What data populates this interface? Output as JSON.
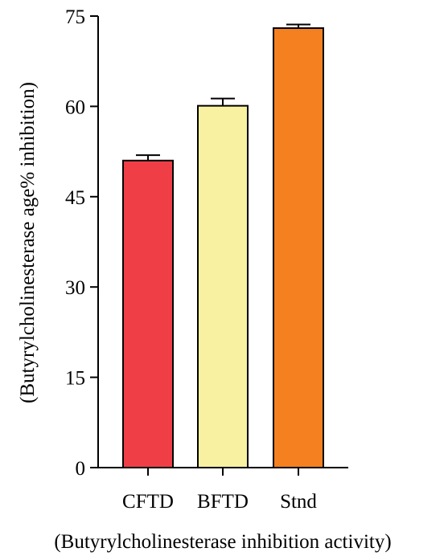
{
  "chart_data": {
    "type": "bar",
    "title": "",
    "xlabel": "(Butyrylcholinesterase inhibition activity)",
    "ylabel": "(Butyrylcholinesterase age% inhibition)",
    "categories": [
      "CFTD",
      "BFTD",
      "Stnd"
    ],
    "values": [
      51.0,
      60.1,
      73.0
    ],
    "error_upper": [
      0.9,
      1.2,
      0.6
    ],
    "colors": [
      "#ef3e46",
      "#f7f1a1",
      "#f4801f"
    ],
    "ylim": [
      0,
      75
    ],
    "yticks": [
      0,
      15,
      30,
      45,
      60,
      75
    ],
    "ytick_labels": [
      "0",
      "15",
      "30",
      "45",
      "60",
      "75"
    ],
    "grid": false,
    "legend": "none"
  }
}
